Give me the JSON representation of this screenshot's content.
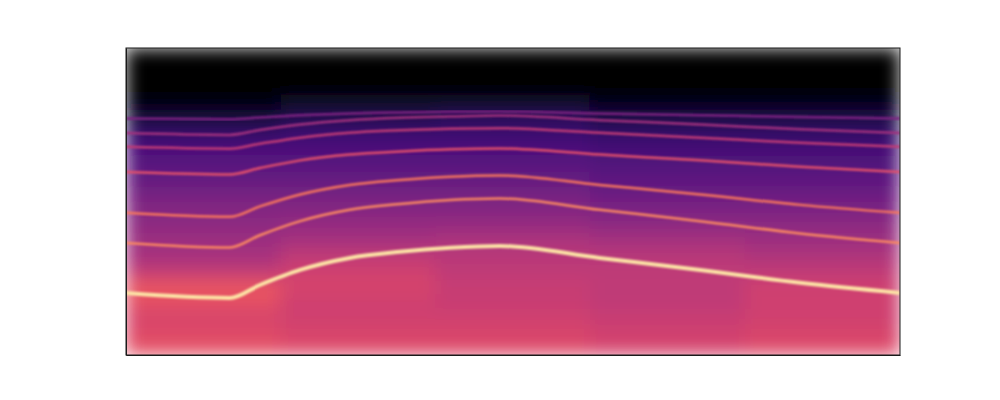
{
  "chart_data": {
    "type": "heatmap",
    "tick_labels": false,
    "xlim": [
      0,
      100
    ],
    "ylim": [
      0,
      100
    ],
    "color_range": [
      0,
      100
    ],
    "x_bins": [
      0,
      20,
      40,
      60,
      80,
      100
    ],
    "y_bins": [
      0,
      5,
      10,
      15,
      20,
      25,
      30,
      35,
      40,
      45,
      50,
      55,
      60,
      65,
      70,
      75,
      80,
      85,
      90,
      95,
      100
    ],
    "cells": [
      [
        62,
        60,
        60,
        58,
        60
      ],
      [
        60,
        58,
        58,
        56,
        58
      ],
      [
        58,
        56,
        56,
        54,
        56
      ],
      [
        62,
        56,
        54,
        52,
        56
      ],
      [
        64,
        58,
        54,
        52,
        56
      ],
      [
        52,
        56,
        52,
        52,
        52
      ],
      [
        46,
        52,
        50,
        50,
        48
      ],
      [
        44,
        46,
        48,
        46,
        44
      ],
      [
        40,
        42,
        42,
        40,
        40
      ],
      [
        38,
        38,
        38,
        36,
        36
      ],
      [
        34,
        34,
        34,
        32,
        32
      ],
      [
        30,
        30,
        30,
        28,
        28
      ],
      [
        27,
        27,
        27,
        25,
        25
      ],
      [
        24,
        24,
        24,
        22,
        22
      ],
      [
        18,
        20,
        20,
        18,
        18
      ],
      [
        10,
        14,
        16,
        12,
        12
      ],
      [
        3,
        6,
        6,
        4,
        4
      ],
      [
        1,
        1,
        1,
        1,
        1
      ],
      [
        1,
        1,
        1,
        1,
        1
      ],
      [
        1,
        1,
        1,
        1,
        1
      ]
    ],
    "x": [
      0,
      13.4,
      17.3,
      22.5,
      28.9,
      35.4,
      41.9,
      48.3,
      61.2,
      74.2,
      87.1,
      100
    ],
    "series": [
      {
        "type": "line",
        "color": "#fde4a6",
        "values": [
          20.2,
          18.6,
          22.8,
          27.7,
          31.6,
          33.6,
          34.9,
          35.5,
          31.6,
          27.7,
          23.5,
          20.2
        ]
      },
      {
        "type": "line",
        "color": "#fb8861",
        "values": [
          36.5,
          35.0,
          39.0,
          43.6,
          47.3,
          49.2,
          50.5,
          51.0,
          47.3,
          43.6,
          39.6,
          36.5
        ]
      },
      {
        "type": "line",
        "color": "#f8765c",
        "values": [
          46.3,
          45.0,
          48.4,
          52.3,
          55.4,
          57.0,
          58.1,
          58.5,
          55.4,
          52.3,
          48.9,
          46.3
        ]
      },
      {
        "type": "line",
        "color": "#e3506a",
        "values": [
          59.6,
          58.8,
          60.9,
          63.4,
          65.3,
          66.3,
          67.0,
          67.3,
          65.3,
          63.4,
          61.3,
          59.6
        ]
      },
      {
        "type": "line",
        "color": "#c23b75",
        "values": [
          67.8,
          67.2,
          68.8,
          70.8,
          72.4,
          73.2,
          73.7,
          73.9,
          72.4,
          70.8,
          69.1,
          67.8
        ]
      },
      {
        "type": "line",
        "color": "#a3307e",
        "values": [
          72.3,
          71.7,
          73.3,
          75.1,
          76.5,
          77.3,
          77.7,
          78.0,
          76.5,
          75.1,
          73.5,
          72.3
        ]
      },
      {
        "type": "line",
        "color": "#7d2482",
        "values": [
          77.0,
          76.8,
          77.4,
          78.1,
          78.7,
          79.0,
          79.2,
          79.3,
          78.7,
          78.1,
          77.5,
          77.0
        ]
      }
    ]
  }
}
